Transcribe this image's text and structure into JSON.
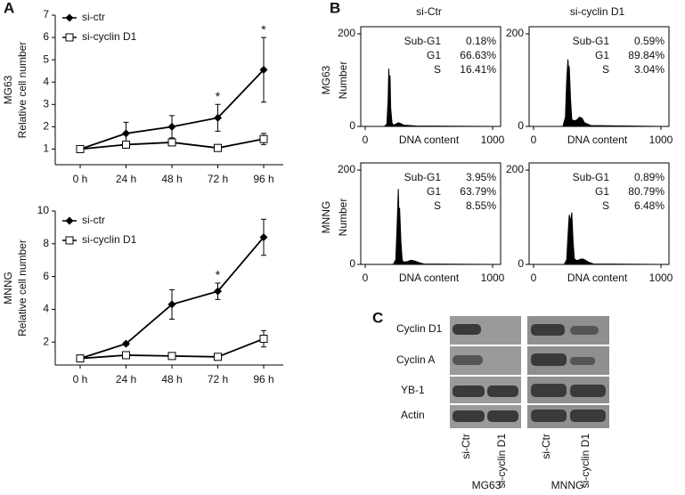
{
  "figure": {
    "panel_labels": [
      "A",
      "B",
      "C"
    ],
    "blot": {
      "proteins": [
        "Cyclin D1",
        "Cyclin A",
        "YB-1",
        "Actin"
      ],
      "lanes": [
        "si-Ctr",
        "si-cyclin D1",
        "si-Ctr",
        "si-cyclin D1"
      ],
      "groups": [
        "MG63",
        "MNNG"
      ]
    }
  },
  "chart_data": [
    {
      "type": "line",
      "row_label": "MG63",
      "y_label": "Relative cell number",
      "categories": [
        "0 h",
        "24 h",
        "48 h",
        "72 h",
        "96 h"
      ],
      "series": [
        {
          "name": "si-ctr",
          "color": "#000000",
          "marker": "diamond",
          "values": [
            1,
            1.7,
            2,
            2.4,
            4.55
          ],
          "errors": [
            0,
            0.5,
            0.5,
            0.6,
            1.45
          ]
        },
        {
          "name": "si-cyclin D1",
          "color": "#000000",
          "marker": "square",
          "values": [
            1,
            1.2,
            1.3,
            1.05,
            1.45
          ],
          "errors": [
            0.05,
            0.15,
            0.15,
            0.15,
            0.25
          ]
        }
      ],
      "annotations": [
        {
          "text": "*",
          "x": "72 h"
        },
        {
          "text": "*",
          "x": "96 h"
        }
      ],
      "ylim": [
        0.3,
        7
      ],
      "yticks": [
        1,
        2,
        3,
        4,
        5,
        6,
        7
      ]
    },
    {
      "type": "line",
      "row_label": "MNNG",
      "y_label": "Relative cell number",
      "categories": [
        "0 h",
        "24 h",
        "48 h",
        "72 h",
        "96 h"
      ],
      "series": [
        {
          "name": "si-ctr",
          "color": "#000000",
          "marker": "diamond",
          "values": [
            1,
            1.9,
            4.3,
            5.1,
            8.4
          ],
          "errors": [
            0,
            0.1,
            0.9,
            0.5,
            1.1
          ]
        },
        {
          "name": "si-cyclin D1",
          "color": "#000000",
          "marker": "square",
          "values": [
            1,
            1.2,
            1.15,
            1.1,
            2.2
          ],
          "errors": [
            0.05,
            0.1,
            0.2,
            0.15,
            0.5
          ]
        }
      ],
      "annotations": [
        {
          "text": "*",
          "x": "72 h"
        }
      ],
      "ylim": [
        0.6,
        10
      ],
      "yticks": [
        2,
        4,
        6,
        8,
        10
      ]
    },
    {
      "type": "area",
      "title": "si-Ctr",
      "row_label": "MG63",
      "y_label": "Number",
      "x_label": "DNA content",
      "x": [
        150,
        170,
        180,
        185,
        190,
        195,
        200,
        210,
        220,
        240,
        260,
        280,
        300,
        350,
        400,
        1000
      ],
      "values": [
        0,
        5,
        60,
        125,
        90,
        110,
        40,
        8,
        3,
        5,
        8,
        6,
        3,
        2,
        1,
        0
      ],
      "stats": [
        [
          "Sub-G1",
          "0.18%"
        ],
        [
          "G1",
          "66.63%"
        ],
        [
          "S",
          "16.41%"
        ]
      ],
      "xlim": [
        0,
        1000
      ],
      "xticks": [
        0,
        1000
      ],
      "ylim": [
        0,
        200
      ],
      "yticks": [
        0,
        200
      ]
    },
    {
      "type": "area",
      "title": "si-cyclin D1",
      "x_label": "DNA content",
      "x": [
        230,
        250,
        260,
        270,
        275,
        280,
        290,
        300,
        320,
        340,
        360,
        380,
        400,
        450,
        1000
      ],
      "values": [
        0,
        20,
        100,
        145,
        120,
        130,
        60,
        15,
        12,
        14,
        20,
        18,
        8,
        2,
        0
      ],
      "stats": [
        [
          "Sub-G1",
          "0.59%"
        ],
        [
          "G1",
          "89.84%"
        ],
        [
          "S",
          "3.04%"
        ]
      ],
      "xlim": [
        0,
        1000
      ],
      "xticks": [
        0,
        1000
      ],
      "ylim": [
        0,
        200
      ],
      "yticks": [
        0,
        200
      ]
    },
    {
      "type": "area",
      "row_label": "MNNG",
      "y_label": "Number",
      "x_label": "DNA content",
      "x": [
        220,
        240,
        250,
        260,
        265,
        270,
        280,
        290,
        300,
        330,
        360,
        390,
        420,
        460,
        1000
      ],
      "values": [
        0,
        10,
        80,
        160,
        100,
        120,
        50,
        10,
        5,
        6,
        9,
        7,
        4,
        1,
        0
      ],
      "stats": [
        [
          "Sub-G1",
          "3.95%"
        ],
        [
          "G1",
          "63.79%"
        ],
        [
          "S",
          "8.55%"
        ]
      ],
      "xlim": [
        0,
        1000
      ],
      "xticks": [
        0,
        1000
      ],
      "ylim": [
        0,
        200
      ],
      "yticks": [
        0,
        200
      ]
    },
    {
      "type": "area",
      "x_label": "DNA content",
      "x": [
        240,
        260,
        270,
        280,
        290,
        300,
        310,
        320,
        340,
        360,
        380,
        400,
        430,
        470,
        1000
      ],
      "values": [
        0,
        10,
        60,
        105,
        90,
        110,
        50,
        12,
        8,
        10,
        12,
        10,
        5,
        1,
        0
      ],
      "stats": [
        [
          "Sub-G1",
          "0.89%"
        ],
        [
          "G1",
          "80.79%"
        ],
        [
          "S",
          "6.48%"
        ]
      ],
      "xlim": [
        0,
        1000
      ],
      "xticks": [
        0,
        1000
      ],
      "ylim": [
        0,
        200
      ],
      "yticks": [
        0,
        200
      ]
    }
  ]
}
